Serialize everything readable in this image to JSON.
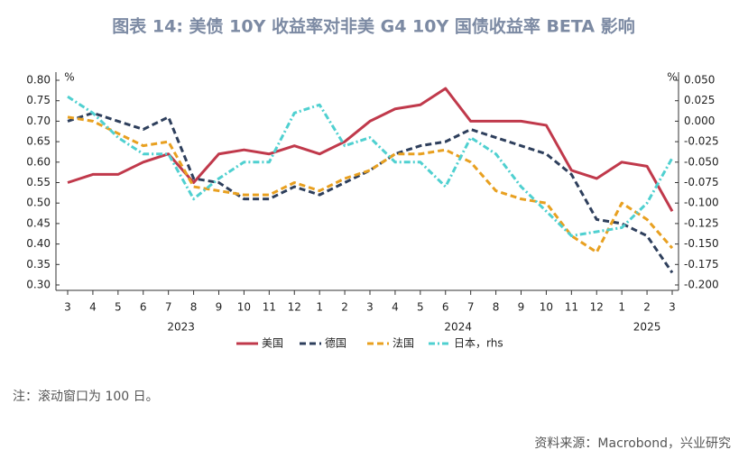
{
  "chart_data": {
    "type": "line",
    "title": "图表 14: 美债 10Y 收益率对非美 G4 10Y 国债收益率 BETA 影响",
    "y_unit": "%",
    "y2_unit": "%",
    "note": "注：滚动窗口为 100 日。",
    "source": "资料来源：Macrobond，兴业研究",
    "categories": [
      "3",
      "4",
      "5",
      "6",
      "7",
      "8",
      "9",
      "10",
      "11",
      "12",
      "1",
      "2",
      "3",
      "4",
      "5",
      "6",
      "7",
      "8",
      "9",
      "10",
      "11",
      "12",
      "1",
      "2",
      "3"
    ],
    "years": [
      "2023",
      "2024",
      "2025"
    ],
    "ylim": [
      0.3,
      0.8
    ],
    "yticks": [
      {
        "value": 0.8,
        "label": "0.80"
      },
      {
        "value": 0.75,
        "label": "0.75"
      },
      {
        "value": 0.7,
        "label": "0.70"
      },
      {
        "value": 0.65,
        "label": "0.65"
      },
      {
        "value": 0.6,
        "label": "0.60"
      },
      {
        "value": 0.55,
        "label": "0.55"
      },
      {
        "value": 0.5,
        "label": "0.50"
      },
      {
        "value": 0.45,
        "label": "0.45"
      },
      {
        "value": 0.4,
        "label": "0.40"
      },
      {
        "value": 0.35,
        "label": "0.35"
      },
      {
        "value": 0.3,
        "label": "0.30"
      }
    ],
    "y2lim": [
      -0.2,
      0.05
    ],
    "y2ticks": [
      {
        "value": 0.05,
        "label": "0.050"
      },
      {
        "value": 0.025,
        "label": "0.025"
      },
      {
        "value": 0,
        "label": "0.000"
      },
      {
        "value": -0.025,
        "label": "-0.025"
      },
      {
        "value": -0.05,
        "label": "-0.050"
      },
      {
        "value": -0.075,
        "label": "-0.075"
      },
      {
        "value": -0.1,
        "label": "-0.100"
      },
      {
        "value": -0.125,
        "label": "-0.125"
      },
      {
        "value": -0.15,
        "label": "-0.150"
      },
      {
        "value": -0.175,
        "label": "-0.175"
      },
      {
        "value": -0.2,
        "label": "-0.200"
      }
    ],
    "series": [
      {
        "name": "美国",
        "color": "#c0394b",
        "style": "solid",
        "values": [
          0.55,
          0.57,
          0.57,
          0.6,
          0.62,
          0.55,
          0.62,
          0.63,
          0.62,
          0.64,
          0.62,
          0.65,
          0.7,
          0.73,
          0.74,
          0.78,
          0.7,
          0.7,
          0.7,
          0.69,
          0.58,
          0.56,
          0.6,
          0.59,
          0.48
        ]
      },
      {
        "name": "德国",
        "color": "#2e3f5c",
        "style": "dashed",
        "values": [
          0.7,
          0.72,
          0.7,
          0.68,
          0.71,
          0.56,
          0.55,
          0.51,
          0.51,
          0.54,
          0.52,
          0.55,
          0.58,
          0.62,
          0.64,
          0.65,
          0.68,
          0.66,
          0.64,
          0.62,
          0.57,
          0.46,
          0.45,
          0.42,
          0.33
        ]
      },
      {
        "name": "法国",
        "color": "#e8a020",
        "style": "dashed",
        "values": [
          0.71,
          0.7,
          0.67,
          0.64,
          0.65,
          0.54,
          0.53,
          0.52,
          0.52,
          0.55,
          0.53,
          0.56,
          0.58,
          0.62,
          0.62,
          0.63,
          0.6,
          0.53,
          0.51,
          0.5,
          0.42,
          0.38,
          0.5,
          0.46,
          0.39
        ]
      },
      {
        "name": "日本，rhs",
        "color": "#4fd0d0",
        "style": "dash-dot",
        "axis": "y2",
        "values": [
          0.03,
          0.01,
          -0.02,
          -0.04,
          -0.04,
          -0.095,
          -0.07,
          -0.05,
          -0.05,
          0.01,
          0.02,
          -0.03,
          -0.02,
          -0.05,
          -0.05,
          -0.08,
          -0.02,
          -0.04,
          -0.08,
          -0.11,
          -0.14,
          -0.135,
          -0.13,
          -0.1,
          -0.045
        ]
      }
    ]
  }
}
